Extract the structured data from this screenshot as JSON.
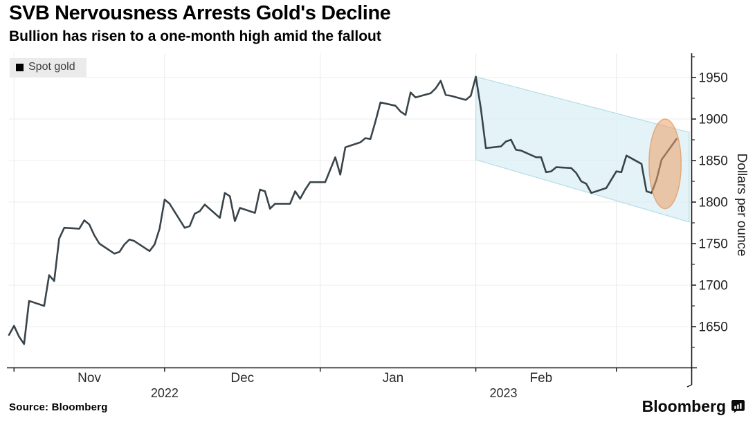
{
  "header": {
    "title": "SVB Nervousness Arrests Gold's Decline",
    "subtitle": "Bullion has risen to a one-month high amid the fallout"
  },
  "legend": {
    "label": "Spot gold",
    "swatch_color": "#000000"
  },
  "footer": {
    "source": "Source: Bloomberg",
    "brand": "Bloomberg"
  },
  "chart_data": {
    "type": "line",
    "title": "SVB Nervousness Arrests Gold's Decline",
    "subtitle": "Bullion has risen to a one-month high amid the fallout",
    "ylabel": "Dollars per ounce",
    "series": [
      {
        "name": "Spot gold",
        "color": "#39444a",
        "points": [
          [
            "10-31",
            1640
          ],
          [
            "11-01",
            1651
          ],
          [
            "11-02",
            1638
          ],
          [
            "11-03",
            1629
          ],
          [
            "11-04",
            1681
          ],
          [
            "11-07",
            1675
          ],
          [
            "11-08",
            1712
          ],
          [
            "11-09",
            1705
          ],
          [
            "11-10",
            1756
          ],
          [
            "11-11",
            1769
          ],
          [
            "11-14",
            1768
          ],
          [
            "11-15",
            1778
          ],
          [
            "11-16",
            1773
          ],
          [
            "11-17",
            1760
          ],
          [
            "11-18",
            1750
          ],
          [
            "11-21",
            1738
          ],
          [
            "11-22",
            1740
          ],
          [
            "11-23",
            1749
          ],
          [
            "11-24",
            1755
          ],
          [
            "11-25",
            1753
          ],
          [
            "11-28",
            1741
          ],
          [
            "11-29",
            1749
          ],
          [
            "11-30",
            1768
          ],
          [
            "12-01",
            1803
          ],
          [
            "12-02",
            1798
          ],
          [
            "12-05",
            1769
          ],
          [
            "12-06",
            1771
          ],
          [
            "12-07",
            1786
          ],
          [
            "12-08",
            1789
          ],
          [
            "12-09",
            1797
          ],
          [
            "12-12",
            1781
          ],
          [
            "12-13",
            1811
          ],
          [
            "12-14",
            1807
          ],
          [
            "12-15",
            1777
          ],
          [
            "12-16",
            1793
          ],
          [
            "12-19",
            1787
          ],
          [
            "12-20",
            1815
          ],
          [
            "12-21",
            1813
          ],
          [
            "12-22",
            1792
          ],
          [
            "12-23",
            1798
          ],
          [
            "12-26",
            1798
          ],
          [
            "12-27",
            1813
          ],
          [
            "12-28",
            1804
          ],
          [
            "12-29",
            1815
          ],
          [
            "12-30",
            1824
          ],
          [
            "01-02",
            1824
          ],
          [
            "01-03",
            1839
          ],
          [
            "01-04",
            1854
          ],
          [
            "01-05",
            1833
          ],
          [
            "01-06",
            1866
          ],
          [
            "01-09",
            1872
          ],
          [
            "01-10",
            1877
          ],
          [
            "01-11",
            1876
          ],
          [
            "01-12",
            1897
          ],
          [
            "01-13",
            1920
          ],
          [
            "01-16",
            1916
          ],
          [
            "01-17",
            1909
          ],
          [
            "01-18",
            1905
          ],
          [
            "01-19",
            1932
          ],
          [
            "01-20",
            1926
          ],
          [
            "01-23",
            1931
          ],
          [
            "01-24",
            1937
          ],
          [
            "01-25",
            1946
          ],
          [
            "01-26",
            1929
          ],
          [
            "01-27",
            1928
          ],
          [
            "01-30",
            1923
          ],
          [
            "01-31",
            1928
          ],
          [
            "02-01",
            1951
          ],
          [
            "02-02",
            1913
          ],
          [
            "02-03",
            1865
          ],
          [
            "02-06",
            1867
          ],
          [
            "02-07",
            1873
          ],
          [
            "02-08",
            1875
          ],
          [
            "02-09",
            1863
          ],
          [
            "02-10",
            1862
          ],
          [
            "02-13",
            1854
          ],
          [
            "02-14",
            1854
          ],
          [
            "02-15",
            1836
          ],
          [
            "02-16",
            1837
          ],
          [
            "02-17",
            1842
          ],
          [
            "02-20",
            1841
          ],
          [
            "02-21",
            1835
          ],
          [
            "02-22",
            1825
          ],
          [
            "02-23",
            1822
          ],
          [
            "02-24",
            1811
          ],
          [
            "02-27",
            1817
          ],
          [
            "02-28",
            1827
          ],
          [
            "03-01",
            1837
          ],
          [
            "03-02",
            1836
          ],
          [
            "03-03",
            1856
          ],
          [
            "03-06",
            1846
          ],
          [
            "03-07",
            1813
          ],
          [
            "03-08",
            1811
          ],
          [
            "03-09",
            1827
          ],
          [
            "03-10",
            1851
          ],
          [
            "03-13",
            1876
          ]
        ]
      }
    ],
    "y_axis": {
      "ticks": [
        1650,
        1700,
        1750,
        1800,
        1850,
        1900,
        1950
      ],
      "minor_step": 25,
      "range": [
        1600,
        1979
      ]
    },
    "x_axis": {
      "months": [
        {
          "label": "Nov",
          "grid_day": 1,
          "label_day": 16
        },
        {
          "label": "Dec",
          "grid_day": 31,
          "label_day": 46.5
        },
        {
          "label": "Jan",
          "grid_day": 62,
          "label_day": 76.5
        },
        {
          "label": "Feb",
          "grid_day": 93,
          "label_day": 106
        },
        {
          "label": "",
          "grid_day": 121,
          "label_day": null
        }
      ],
      "years": [
        {
          "label": "2022",
          "day": 31
        },
        {
          "label": "2023",
          "day": 98.5
        }
      ],
      "start_date": "10-31",
      "end_date": "03-13"
    },
    "annotations": {
      "channel": {
        "points": [
          [
            93,
            1951
          ],
          [
            135.5,
            1884
          ],
          [
            135.5,
            1776
          ],
          [
            93,
            1851
          ]
        ],
        "fill": "#d9eff4",
        "fill_opacity": 0.75,
        "edge": "#b5dde7"
      },
      "ellipse": {
        "day": 130.7,
        "value": 1846,
        "day_radius": 3.2,
        "value_radius": 54,
        "fill": "#ef9f66",
        "stroke": "#e28f52",
        "opacity": 0.55
      }
    },
    "grid_color": "#ececec",
    "axis_color": "#161616",
    "tick_label_color": "#1f1f1f"
  }
}
